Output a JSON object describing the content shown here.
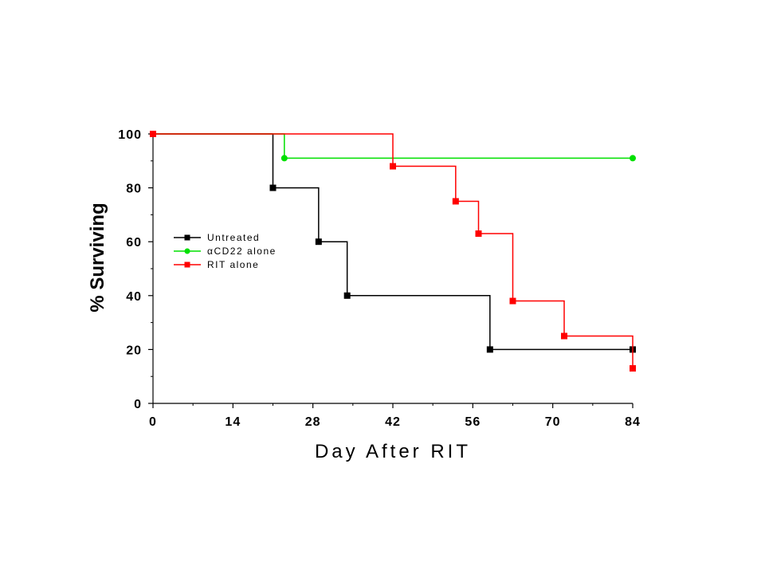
{
  "chart_data": {
    "type": "line",
    "step": true,
    "title": "",
    "xlabel": "Day After RIT",
    "ylabel": "% Surviving",
    "xlim": [
      0,
      84
    ],
    "ylim": [
      0,
      100
    ],
    "xticks": [
      0,
      14,
      28,
      42,
      56,
      70,
      84
    ],
    "yticks": [
      0,
      20,
      40,
      60,
      80,
      100
    ],
    "xtick_labels": [
      "0",
      "14",
      "28",
      "42",
      "56",
      "70",
      "84"
    ],
    "ytick_labels": [
      "0",
      "20",
      "40",
      "60",
      "80",
      "100"
    ],
    "grid": false,
    "legend_position": "middle-left",
    "series": [
      {
        "name": "Untreated",
        "color": "#000000",
        "marker": "square",
        "x": [
          0,
          21,
          29,
          34,
          59,
          84
        ],
        "y": [
          100,
          80,
          60,
          40,
          20,
          20
        ]
      },
      {
        "name": "αCD22 alone",
        "color": "#00e000",
        "marker": "circle",
        "x": [
          0,
          23,
          84
        ],
        "y": [
          100,
          91,
          91
        ]
      },
      {
        "name": "RIT alone",
        "color": "#ff0000",
        "marker": "square",
        "x": [
          0,
          42,
          53,
          57,
          63,
          72,
          84
        ],
        "y": [
          100,
          88,
          75,
          63,
          38,
          25,
          13
        ]
      }
    ]
  }
}
